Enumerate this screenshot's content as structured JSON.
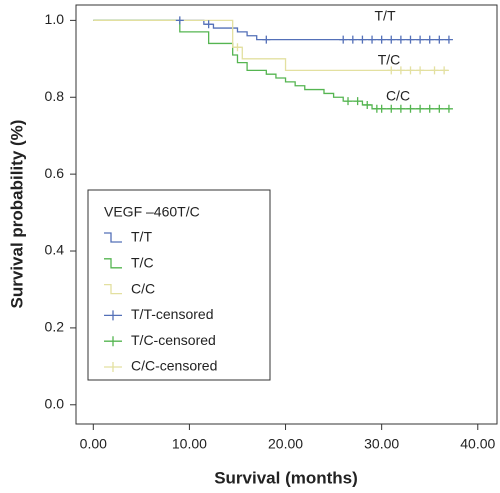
{
  "chart_data": {
    "type": "line",
    "drawstyle": "steps-post",
    "xlabel": "Survival (months)",
    "ylabel": "Survival probability (%)",
    "xlim": [
      -1.8,
      42
    ],
    "ylim": [
      -0.05,
      1.04
    ],
    "xticks": [
      {
        "value": 0,
        "label": "0.00"
      },
      {
        "value": 10,
        "label": "10.00"
      },
      {
        "value": 20,
        "label": "20.00"
      },
      {
        "value": 30,
        "label": "30.00"
      },
      {
        "value": 40,
        "label": "40.00"
      }
    ],
    "yticks": [
      {
        "value": 0,
        "label": "0.0"
      },
      {
        "value": 0.2,
        "label": "0.2"
      },
      {
        "value": 0.4,
        "label": "0.4"
      },
      {
        "value": 0.6,
        "label": "0.6"
      },
      {
        "value": 0.8,
        "label": "0.8"
      },
      {
        "value": 1,
        "label": "1.0"
      }
    ],
    "legend_title": "VEGF –460T/C",
    "series": [
      {
        "name": "T/T",
        "color": "#5470b8",
        "x": [
          0,
          11.5,
          12.5,
          15,
          16,
          17,
          37
        ],
        "values": [
          1,
          0.99,
          0.98,
          0.97,
          0.96,
          0.95,
          0.95
        ]
      },
      {
        "name": "T/C",
        "color": "#55b551",
        "x": [
          0,
          9,
          12,
          14.5,
          15,
          16,
          18,
          19,
          20,
          21,
          22,
          24,
          25,
          26,
          28,
          29,
          37
        ],
        "values": [
          1,
          0.97,
          0.94,
          0.91,
          0.89,
          0.87,
          0.86,
          0.85,
          0.84,
          0.83,
          0.82,
          0.81,
          0.8,
          0.79,
          0.78,
          0.77,
          0.77
        ]
      },
      {
        "name": "C/C",
        "color": "#e3e0a0",
        "x": [
          0,
          14.5,
          15.5,
          20,
          37
        ],
        "values": [
          1,
          0.93,
          0.9,
          0.87,
          0.87
        ]
      }
    ],
    "censored": [
      {
        "name": "T/T-censored",
        "color": "#5470b8",
        "x": [
          9,
          12,
          18,
          26,
          27,
          28,
          29,
          30,
          31,
          32,
          33,
          34,
          35,
          36,
          37
        ],
        "values": [
          1,
          0.99,
          0.95,
          0.95,
          0.95,
          0.95,
          0.95,
          0.95,
          0.95,
          0.95,
          0.95,
          0.95,
          0.95,
          0.95,
          0.95
        ]
      },
      {
        "name": "T/C-censored",
        "color": "#55b551",
        "x": [
          26.5,
          27.5,
          28.5,
          29.5,
          30,
          31,
          32,
          33,
          34,
          35,
          36,
          37
        ],
        "values": [
          0.79,
          0.79,
          0.78,
          0.77,
          0.77,
          0.77,
          0.77,
          0.77,
          0.77,
          0.77,
          0.77,
          0.77
        ]
      },
      {
        "name": "C/C-censored",
        "color": "#e3e0a0",
        "x": [
          15,
          31,
          32,
          33,
          34,
          35.5,
          36.5
        ],
        "values": [
          0.93,
          0.87,
          0.87,
          0.87,
          0.87,
          0.87,
          0.87
        ]
      }
    ]
  }
}
